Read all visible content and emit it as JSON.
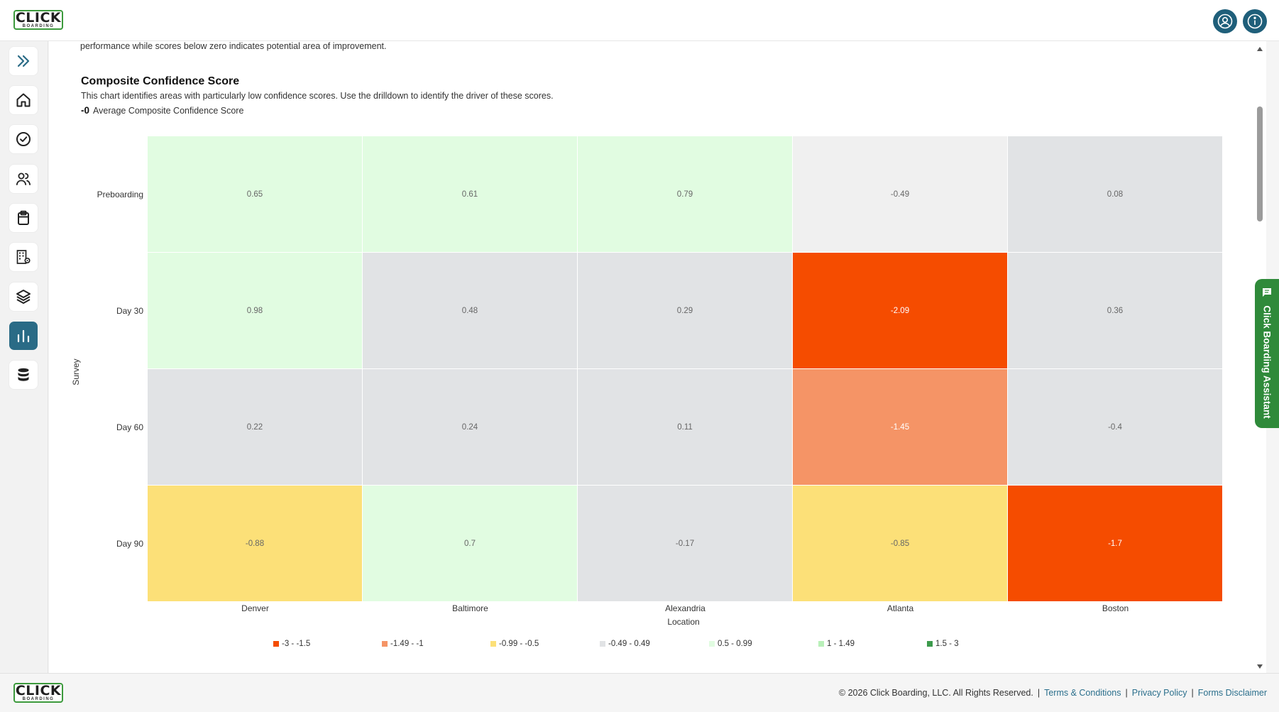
{
  "brand": {
    "logo_main": "CLICK",
    "logo_sub": "BOARDING"
  },
  "header": {
    "icons": [
      "account-icon",
      "info-icon"
    ]
  },
  "sidebar": {
    "items": [
      {
        "name": "expand",
        "icon": "chevrons-right-icon"
      },
      {
        "name": "home",
        "icon": "home-icon"
      },
      {
        "name": "tasks",
        "icon": "check-circle-icon"
      },
      {
        "name": "people",
        "icon": "users-icon"
      },
      {
        "name": "clipboard",
        "icon": "clipboard-icon"
      },
      {
        "name": "organization",
        "icon": "building-gear-icon"
      },
      {
        "name": "layers",
        "icon": "layers-icon"
      },
      {
        "name": "analytics",
        "icon": "bar-chart-icon",
        "active": true
      },
      {
        "name": "database",
        "icon": "database-icon"
      }
    ]
  },
  "content": {
    "intro_tail": "performance while scores below zero indicates potential area of improvement.",
    "title": "Composite Confidence Score",
    "description": "This chart identifies areas with particularly low confidence scores. Use the drilldown to identify the driver of these scores.",
    "average_value": "-0",
    "average_label": "Average Composite Confidence Score"
  },
  "chart_data": {
    "type": "heatmap",
    "title": "Composite Confidence Score",
    "xlabel": "Location",
    "ylabel": "Survey",
    "x_categories": [
      "Denver",
      "Baltimore",
      "Alexandria",
      "Atlanta",
      "Boston"
    ],
    "y_categories": [
      "Preboarding",
      "Day 30",
      "Day 60",
      "Day 90"
    ],
    "values": [
      [
        0.65,
        0.61,
        0.79,
        -0.49,
        0.08
      ],
      [
        0.98,
        0.48,
        0.29,
        -2.09,
        0.36
      ],
      [
        0.22,
        0.24,
        0.11,
        -1.45,
        -0.4
      ],
      [
        -0.88,
        0.7,
        -0.17,
        -0.85,
        -1.7
      ]
    ],
    "cell_colors": [
      [
        "#e1fce1",
        "#e1fce1",
        "#e1fce1",
        "#f0f0f0",
        "#e1e3e5"
      ],
      [
        "#e1fce1",
        "#e1e3e5",
        "#e1e3e5",
        "#f54c00",
        "#e1e3e5"
      ],
      [
        "#e1e3e5",
        "#e1e3e5",
        "#e1e3e5",
        "#f59466",
        "#e1e3e5"
      ],
      [
        "#fce078",
        "#e1fce1",
        "#e1e3e5",
        "#fce078",
        "#f54c00"
      ]
    ],
    "legend": [
      {
        "label": "-3 - -1.5",
        "color": "#f54c00"
      },
      {
        "label": "-1.49 - -1",
        "color": "#f59466"
      },
      {
        "label": "-0.99 - -0.5",
        "color": "#fce078"
      },
      {
        "label": "-0.49 - 0.49",
        "color": "#e1e3e5"
      },
      {
        "label": "0.5 - 0.99",
        "color": "#e1fce1"
      },
      {
        "label": "1 - 1.49",
        "color": "#b9f0b9"
      },
      {
        "label": "1.5 - 3",
        "color": "#3c9a4c"
      }
    ],
    "legend_position": "bottom"
  },
  "assistant": {
    "label": "Click Boarding Assistant"
  },
  "footer": {
    "copyright": "© 2026 Click Boarding, LLC. All Rights Reserved.",
    "links": [
      "Terms & Conditions",
      "Privacy Policy",
      "Forms Disclaimer"
    ]
  },
  "colors": {
    "accent": "#2a6b86",
    "brand_green": "#2f8a3a",
    "link": "#2b6f8c"
  }
}
